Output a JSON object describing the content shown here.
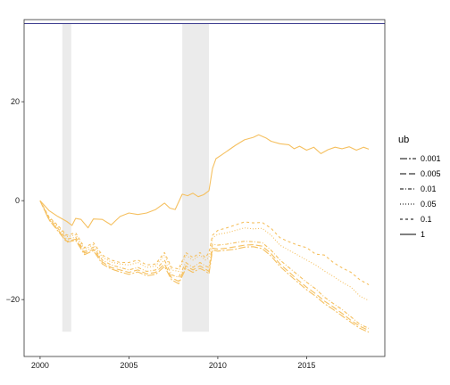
{
  "chart_data": {
    "type": "line",
    "title": "",
    "xlabel": "",
    "ylabel": "",
    "xlim": [
      1999.1,
      2019.4
    ],
    "ylim": [
      -31.5,
      36.6
    ],
    "x_ticks": [
      2000,
      2005,
      2010,
      2015
    ],
    "x_tick_labels": [
      "2000",
      "2005",
      "2010",
      "2015"
    ],
    "y_ticks": [
      -20,
      0,
      20
    ],
    "y_tick_labels": [
      "−20",
      "0",
      "20"
    ],
    "grid": false,
    "recession_bands": [
      {
        "x0": 2001.25,
        "x1": 2001.75,
        "y0": -26.5,
        "y1": 35.8
      },
      {
        "x0": 2008.0,
        "x1": 2009.5,
        "y0": -26.5,
        "y1": 35.8
      }
    ],
    "reference_line": {
      "y": 35.8,
      "color": "#3b3b8f"
    },
    "line_color": "#f5c060",
    "legend": {
      "title": "ub",
      "position": "right",
      "entries": [
        {
          "label": "0.001",
          "dash": "8,2,2,2"
        },
        {
          "label": "0.005",
          "dash": "7,3"
        },
        {
          "label": "0.01",
          "dash": "4,2,1,2"
        },
        {
          "label": "0.05",
          "dash": "1,2"
        },
        {
          "label": "0.1",
          "dash": "3,3"
        },
        {
          "label": "1",
          "dash": ""
        }
      ]
    },
    "series": [
      {
        "name": "1",
        "x": [
          2000.0,
          2000.5,
          2001.0,
          2001.5,
          2001.8,
          2002.0,
          2002.3,
          2002.7,
          2003.0,
          2003.5,
          2004.0,
          2004.5,
          2005.0,
          2005.5,
          2006.0,
          2006.5,
          2007.0,
          2007.3,
          2007.6,
          2008.0,
          2008.3,
          2008.6,
          2008.9,
          2009.2,
          2009.5,
          2009.7,
          2009.9,
          2010.2,
          2010.6,
          2011.0,
          2011.5,
          2012.0,
          2012.3,
          2012.7,
          2013.0,
          2013.5,
          2014.0,
          2014.3,
          2014.6,
          2015.0,
          2015.4,
          2015.8,
          2016.2,
          2016.6,
          2017.0,
          2017.4,
          2017.8,
          2018.2,
          2018.5
        ],
        "y": [
          0.0,
          -2.0,
          -3.2,
          -4.2,
          -5.0,
          -3.6,
          -3.8,
          -5.5,
          -3.7,
          -3.8,
          -4.9,
          -3.2,
          -2.5,
          -2.8,
          -2.5,
          -1.8,
          -0.5,
          -1.5,
          -1.8,
          1.3,
          1.0,
          1.5,
          0.8,
          1.2,
          2.0,
          6.5,
          8.5,
          9.2,
          10.2,
          11.2,
          12.3,
          12.8,
          13.3,
          12.7,
          12.0,
          11.5,
          11.3,
          10.5,
          11.0,
          10.2,
          10.8,
          9.5,
          10.3,
          10.8,
          10.5,
          10.9,
          10.2,
          10.8,
          10.4
        ]
      },
      {
        "name": "0.1",
        "x": [
          2000.0,
          2000.5,
          2001.0,
          2001.5,
          2002.0,
          2002.5,
          2003.0,
          2003.5,
          2004.0,
          2004.5,
          2005.0,
          2005.5,
          2006.0,
          2006.5,
          2007.0,
          2007.4,
          2007.8,
          2008.2,
          2008.6,
          2009.0,
          2009.3,
          2009.5,
          2009.7,
          2010.0,
          2010.5,
          2011.0,
          2011.5,
          2012.0,
          2012.5,
          2013.0,
          2013.5,
          2014.0,
          2014.5,
          2015.0,
          2015.5,
          2016.0,
          2016.5,
          2017.0,
          2017.5,
          2018.0,
          2018.5
        ],
        "y": [
          0.0,
          -3.3,
          -5.0,
          -7.0,
          -6.5,
          -9.5,
          -8.5,
          -11.0,
          -12.0,
          -12.5,
          -12.5,
          -12.0,
          -13.0,
          -12.8,
          -10.5,
          -13.5,
          -13.8,
          -10.5,
          -11.5,
          -10.5,
          -11.5,
          -10.5,
          -7.0,
          -6.0,
          -5.5,
          -4.9,
          -4.3,
          -4.5,
          -4.4,
          -5.6,
          -7.5,
          -8.3,
          -9.0,
          -9.5,
          -10.8,
          -11.0,
          -12.5,
          -13.6,
          -14.5,
          -16.0,
          -17.0
        ]
      },
      {
        "name": "0.05",
        "x": [
          2000.0,
          2000.5,
          2001.0,
          2001.5,
          2002.0,
          2002.5,
          2003.0,
          2003.5,
          2004.0,
          2004.5,
          2005.0,
          2005.5,
          2006.0,
          2006.5,
          2007.0,
          2007.4,
          2007.8,
          2008.2,
          2008.6,
          2009.0,
          2009.3,
          2009.5,
          2009.7,
          2010.0,
          2010.5,
          2011.0,
          2011.5,
          2012.0,
          2012.5,
          2013.0,
          2013.5,
          2014.0,
          2014.5,
          2015.0,
          2015.5,
          2016.0,
          2016.5,
          2017.0,
          2017.5,
          2018.0,
          2018.5
        ],
        "y": [
          0.0,
          -3.4,
          -5.2,
          -7.3,
          -6.9,
          -9.8,
          -8.9,
          -11.4,
          -12.4,
          -12.8,
          -13.0,
          -12.5,
          -13.5,
          -13.2,
          -11.0,
          -14.0,
          -14.3,
          -11.0,
          -12.0,
          -11.0,
          -12.0,
          -11.5,
          -7.5,
          -6.8,
          -6.5,
          -6.0,
          -5.5,
          -5.7,
          -5.6,
          -7.0,
          -9.0,
          -10.0,
          -11.0,
          -12.0,
          -13.0,
          -14.2,
          -15.3,
          -16.5,
          -17.5,
          -19.3,
          -20.2
        ]
      },
      {
        "name": "0.01",
        "x": [
          2000.0,
          2000.5,
          2001.0,
          2001.5,
          2002.0,
          2002.5,
          2003.0,
          2003.5,
          2004.0,
          2004.5,
          2005.0,
          2005.5,
          2006.0,
          2006.5,
          2007.0,
          2007.4,
          2007.8,
          2008.2,
          2008.6,
          2009.0,
          2009.3,
          2009.5,
          2009.7,
          2010.0,
          2010.5,
          2011.0,
          2011.5,
          2012.0,
          2012.5,
          2013.0,
          2013.5,
          2014.0,
          2014.5,
          2015.0,
          2015.5,
          2016.0,
          2016.5,
          2017.0,
          2017.5,
          2018.0,
          2018.5
        ],
        "y": [
          0.0,
          -3.6,
          -5.6,
          -7.8,
          -7.4,
          -10.3,
          -9.4,
          -12.0,
          -13.0,
          -13.5,
          -14.0,
          -13.5,
          -14.3,
          -14.0,
          -12.0,
          -15.0,
          -15.5,
          -12.5,
          -13.5,
          -12.5,
          -13.2,
          -13.5,
          -8.8,
          -9.0,
          -8.8,
          -8.5,
          -8.2,
          -8.3,
          -8.5,
          -10.0,
          -12.0,
          -13.5,
          -15.0,
          -16.5,
          -17.8,
          -19.5,
          -20.8,
          -22.0,
          -23.5,
          -25.0,
          -25.8
        ]
      },
      {
        "name": "0.005",
        "x": [
          2000.0,
          2000.5,
          2001.0,
          2001.5,
          2002.0,
          2002.5,
          2003.0,
          2003.5,
          2004.0,
          2004.5,
          2005.0,
          2005.5,
          2006.0,
          2006.5,
          2007.0,
          2007.4,
          2007.8,
          2008.2,
          2008.6,
          2009.0,
          2009.3,
          2009.5,
          2009.7,
          2010.0,
          2010.5,
          2011.0,
          2011.5,
          2012.0,
          2012.5,
          2013.0,
          2013.5,
          2014.0,
          2014.5,
          2015.0,
          2015.5,
          2016.0,
          2016.5,
          2017.0,
          2017.5,
          2018.0,
          2018.5
        ],
        "y": [
          0.0,
          -3.8,
          -5.9,
          -8.2,
          -7.8,
          -10.6,
          -9.8,
          -12.4,
          -13.5,
          -14.0,
          -14.5,
          -14.0,
          -14.8,
          -14.5,
          -12.8,
          -15.6,
          -16.3,
          -13.2,
          -14.0,
          -13.2,
          -13.8,
          -14.3,
          -9.6,
          -9.8,
          -9.6,
          -9.3,
          -9.0,
          -8.9,
          -9.2,
          -10.7,
          -12.8,
          -14.4,
          -16.0,
          -17.5,
          -18.8,
          -20.3,
          -21.5,
          -22.8,
          -24.2,
          -25.4,
          -26.2
        ]
      },
      {
        "name": "0.001",
        "x": [
          2000.0,
          2000.5,
          2001.0,
          2001.5,
          2002.0,
          2002.5,
          2003.0,
          2003.5,
          2004.0,
          2004.5,
          2005.0,
          2005.5,
          2006.0,
          2006.5,
          2007.0,
          2007.4,
          2007.8,
          2008.2,
          2008.6,
          2009.0,
          2009.3,
          2009.5,
          2009.7,
          2010.0,
          2010.5,
          2011.0,
          2011.5,
          2012.0,
          2012.5,
          2013.0,
          2013.5,
          2014.0,
          2014.5,
          2015.0,
          2015.5,
          2016.0,
          2016.5,
          2017.0,
          2017.5,
          2018.0,
          2018.5
        ],
        "y": [
          0.0,
          -3.9,
          -6.1,
          -8.4,
          -8.0,
          -10.9,
          -10.1,
          -12.8,
          -13.8,
          -14.4,
          -14.9,
          -14.4,
          -15.2,
          -14.9,
          -13.3,
          -16.0,
          -16.8,
          -13.7,
          -14.5,
          -13.7,
          -14.2,
          -14.8,
          -10.0,
          -10.2,
          -10.0,
          -9.8,
          -9.4,
          -9.3,
          -9.7,
          -11.2,
          -13.3,
          -14.9,
          -16.5,
          -18.0,
          -19.3,
          -20.8,
          -22.0,
          -23.3,
          -24.6,
          -25.8,
          -26.6
        ]
      }
    ]
  }
}
